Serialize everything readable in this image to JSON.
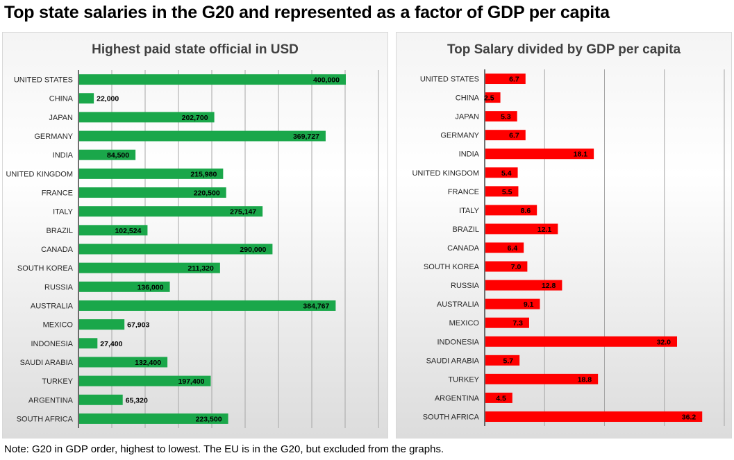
{
  "title": "Top state salaries in the G20 and represented as a factor of GDP per capita",
  "note": "Note: G20 in GDP order, highest to lowest. The EU is in the G20, but excluded from the graphs.",
  "colors": {
    "left_bar": "#1aa74a",
    "right_bar": "#ff0000",
    "grid": "#a6a6a6",
    "axis": "#404040"
  },
  "chart_data": [
    {
      "type": "bar",
      "orientation": "horizontal",
      "title": "Highest paid state official in USD",
      "categories": [
        "UNITED STATES",
        "CHINA",
        "JAPAN",
        "GERMANY",
        "INDIA",
        "UNITED KINGDOM",
        "FRANCE",
        "ITALY",
        "BRAZIL",
        "CANADA",
        "SOUTH KOREA",
        "RUSSIA",
        "AUSTRALIA",
        "MEXICO",
        "INDONESIA",
        "SAUDI ARABIA",
        "TURKEY",
        "ARGENTINA",
        "SOUTH AFRICA"
      ],
      "values": [
        400000,
        22000,
        202700,
        369727,
        84500,
        215980,
        220500,
        275147,
        102524,
        290000,
        211320,
        136000,
        384767,
        67903,
        27400,
        132400,
        197400,
        65320,
        223500
      ],
      "value_labels": [
        "400,000",
        "22,000",
        "202,700",
        "369,727",
        "84,500",
        "215,980",
        "220,500",
        "275,147",
        "102,524",
        "290,000",
        "211,320",
        "136,000",
        "384,767",
        "67,903",
        "27,400",
        "132,400",
        "197,400",
        "65,320",
        "223,500"
      ],
      "xlim": [
        0,
        450000
      ],
      "grid": true,
      "tick_labels_visible": false
    },
    {
      "type": "bar",
      "orientation": "horizontal",
      "title": "Top Salary divided by GDP per capita",
      "categories": [
        "UNITED STATES",
        "CHINA",
        "JAPAN",
        "GERMANY",
        "INDIA",
        "UNITED KINGDOM",
        "FRANCE",
        "ITALY",
        "BRAZIL",
        "CANADA",
        "SOUTH KOREA",
        "RUSSIA",
        "AUSTRALIA",
        "MEXICO",
        "INDONESIA",
        "SAUDI ARABIA",
        "TURKEY",
        "ARGENTINA",
        "SOUTH AFRICA"
      ],
      "values": [
        6.7,
        2.5,
        5.3,
        6.7,
        18.1,
        5.4,
        5.5,
        8.6,
        12.1,
        6.4,
        7.0,
        12.8,
        9.1,
        7.3,
        32.0,
        5.7,
        18.8,
        4.5,
        36.2
      ],
      "value_labels": [
        "6.7",
        "2.5",
        "5.3",
        "6.7",
        "18.1",
        "5.4",
        "5.5",
        "8.6",
        "12.1",
        "6.4",
        "7.0",
        "12.8",
        "9.1",
        "7.3",
        "32.0",
        "5.7",
        "18.8",
        "4.5",
        "36.2"
      ],
      "xlim": [
        0,
        40
      ],
      "grid": true,
      "tick_labels_visible": false
    }
  ]
}
